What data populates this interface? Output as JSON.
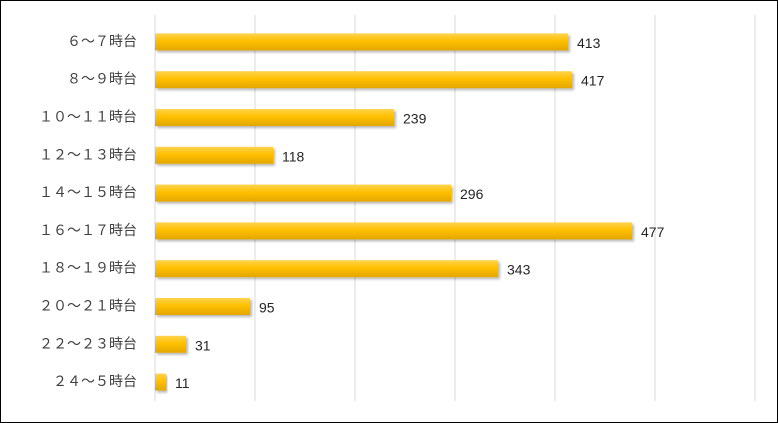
{
  "chart_data": {
    "type": "bar",
    "orientation": "horizontal",
    "categories": [
      "６～７時台",
      "８～９時台",
      "１０～１１時台",
      "１２～１３時台",
      "１４～１５時台",
      "１６～１７時台",
      "１８～１９時台",
      "２０～２１時台",
      "２２～２３時台",
      "２４～５時台"
    ],
    "values": [
      413,
      417,
      239,
      118,
      296,
      477,
      343,
      95,
      31,
      11
    ],
    "xlim": [
      0,
      600
    ],
    "grid": true,
    "legend": "none",
    "data_labels": true,
    "bar_color": "#FFC000",
    "bar_shade_color": "#E8A800",
    "grid_color": "#D9D9D9",
    "label_color": "#404040",
    "value_color": "#262626"
  }
}
